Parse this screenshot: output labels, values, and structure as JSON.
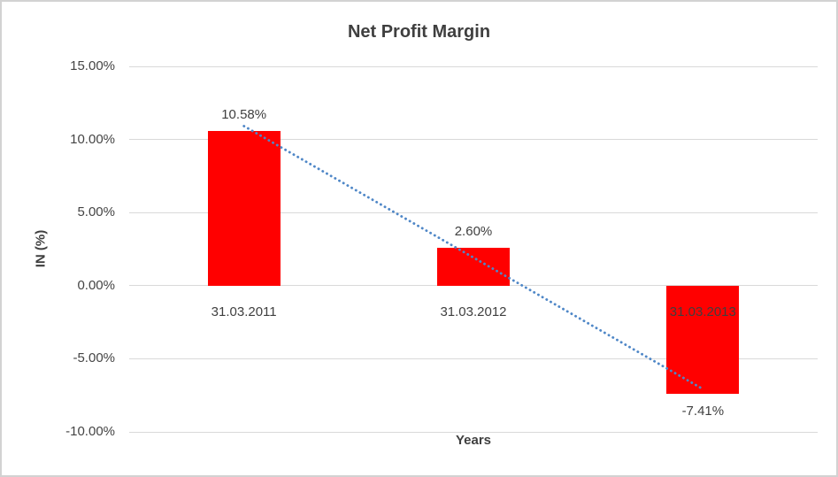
{
  "chart_data": {
    "type": "bar",
    "title": "Net Profit Margin",
    "xlabel": "Years",
    "ylabel": "IN (%)",
    "categories": [
      "31.03.2011",
      "31.03.2012",
      "31.03.2013"
    ],
    "series": [
      {
        "name": "Net Profit Margin",
        "values": [
          10.58,
          2.6,
          -7.41
        ],
        "data_labels": [
          "10.58%",
          "2.60%",
          "-7.41%"
        ],
        "color": "#ff0000"
      }
    ],
    "y_axis": {
      "min": -10,
      "max": 15,
      "tick_step": 5,
      "tick_values": [
        15,
        10,
        5,
        0,
        -5,
        -10
      ],
      "tick_labels": [
        "15.00%",
        "10.00%",
        "5.00%",
        "0.00%",
        "-5.00%",
        "-10.00%"
      ]
    },
    "grid": "horizontal",
    "legend": "none",
    "trendline": {
      "type": "linear",
      "style": "dotted",
      "color": "#4f87c7"
    },
    "colors": {
      "bar": "#ff0000",
      "text": "#3f3f3f",
      "gridline": "#d9d9d9",
      "chart_border": "#d2d2d2",
      "trendline": "#4f87c7"
    }
  }
}
